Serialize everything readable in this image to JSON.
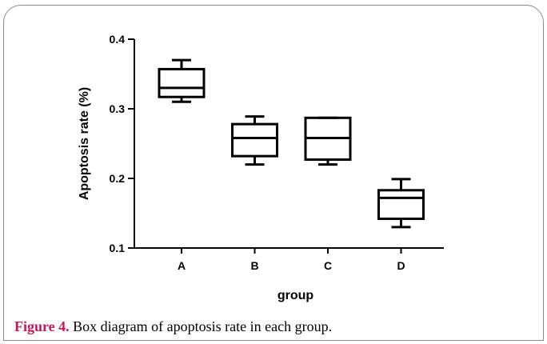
{
  "caption": {
    "label": "Figure 4.",
    "text": " Box diagram of apoptosis rate in each group."
  },
  "chart_data": {
    "type": "box",
    "xlabel": "group",
    "ylabel": "Apoptosis rate (%)",
    "ylim": [
      0.1,
      0.4
    ],
    "yticks": [
      "0.1",
      "0.2",
      "0.3",
      "0.4"
    ],
    "categories": [
      "A",
      "B",
      "C",
      "D"
    ],
    "boxes": [
      {
        "category": "A",
        "min": 0.31,
        "q1": 0.317,
        "median": 0.33,
        "q3": 0.357,
        "max": 0.37
      },
      {
        "category": "B",
        "min": 0.22,
        "q1": 0.232,
        "median": 0.258,
        "q3": 0.278,
        "max": 0.289
      },
      {
        "category": "C",
        "min": 0.22,
        "q1": 0.227,
        "median": 0.258,
        "q3": 0.287,
        "max": 0.287
      },
      {
        "category": "D",
        "min": 0.13,
        "q1": 0.142,
        "median": 0.172,
        "q3": 0.183,
        "max": 0.199
      }
    ],
    "grid": false,
    "line_color": "#000000",
    "caption_label_color": "#c2185b"
  }
}
